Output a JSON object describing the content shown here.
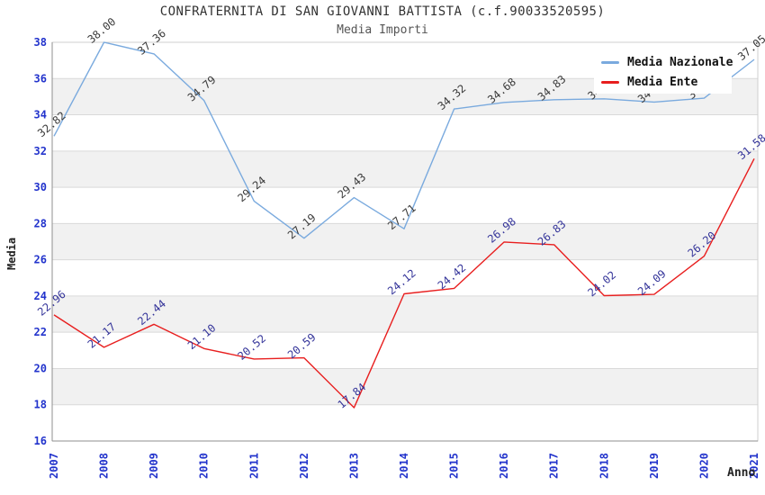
{
  "title": "CONFRATERNITA DI SAN GIOVANNI BATTISTA (c.f.90033520595)",
  "subtitle": "Media Importi",
  "chart_data": {
    "type": "line",
    "x": [
      2007,
      2008,
      2009,
      2010,
      2011,
      2012,
      2013,
      2014,
      2015,
      2016,
      2017,
      2018,
      2019,
      2020,
      2021
    ],
    "xlabel": "Anno",
    "ylabel": "Media",
    "ylim": [
      16,
      38
    ],
    "ytick_step": 2,
    "grid": true,
    "legend_position": "top-right",
    "series": [
      {
        "name": "Media Nazionale",
        "color": "#7aaade",
        "label_color": "#3a3a3a",
        "values": [
          32.82,
          38.0,
          37.36,
          34.79,
          29.24,
          27.19,
          29.43,
          27.71,
          34.32,
          34.68,
          34.83,
          34.88,
          34.7,
          34.92,
          37.05
        ]
      },
      {
        "name": "Media Ente",
        "color": "#e81e1e",
        "label_color": "#333399",
        "values": [
          22.96,
          21.17,
          22.44,
          21.1,
          20.52,
          20.59,
          17.84,
          24.12,
          24.42,
          26.98,
          26.83,
          24.02,
          24.09,
          26.2,
          31.58
        ]
      }
    ],
    "style": {
      "tick_label_color": "#2233cc",
      "grid_color": "#d9d9d9",
      "band_color": "#f1f1f1",
      "axis_color": "#8f8f8f",
      "border_color": "#cfcfcf",
      "title_color": "#333333",
      "subtitle_color": "#555555"
    }
  }
}
